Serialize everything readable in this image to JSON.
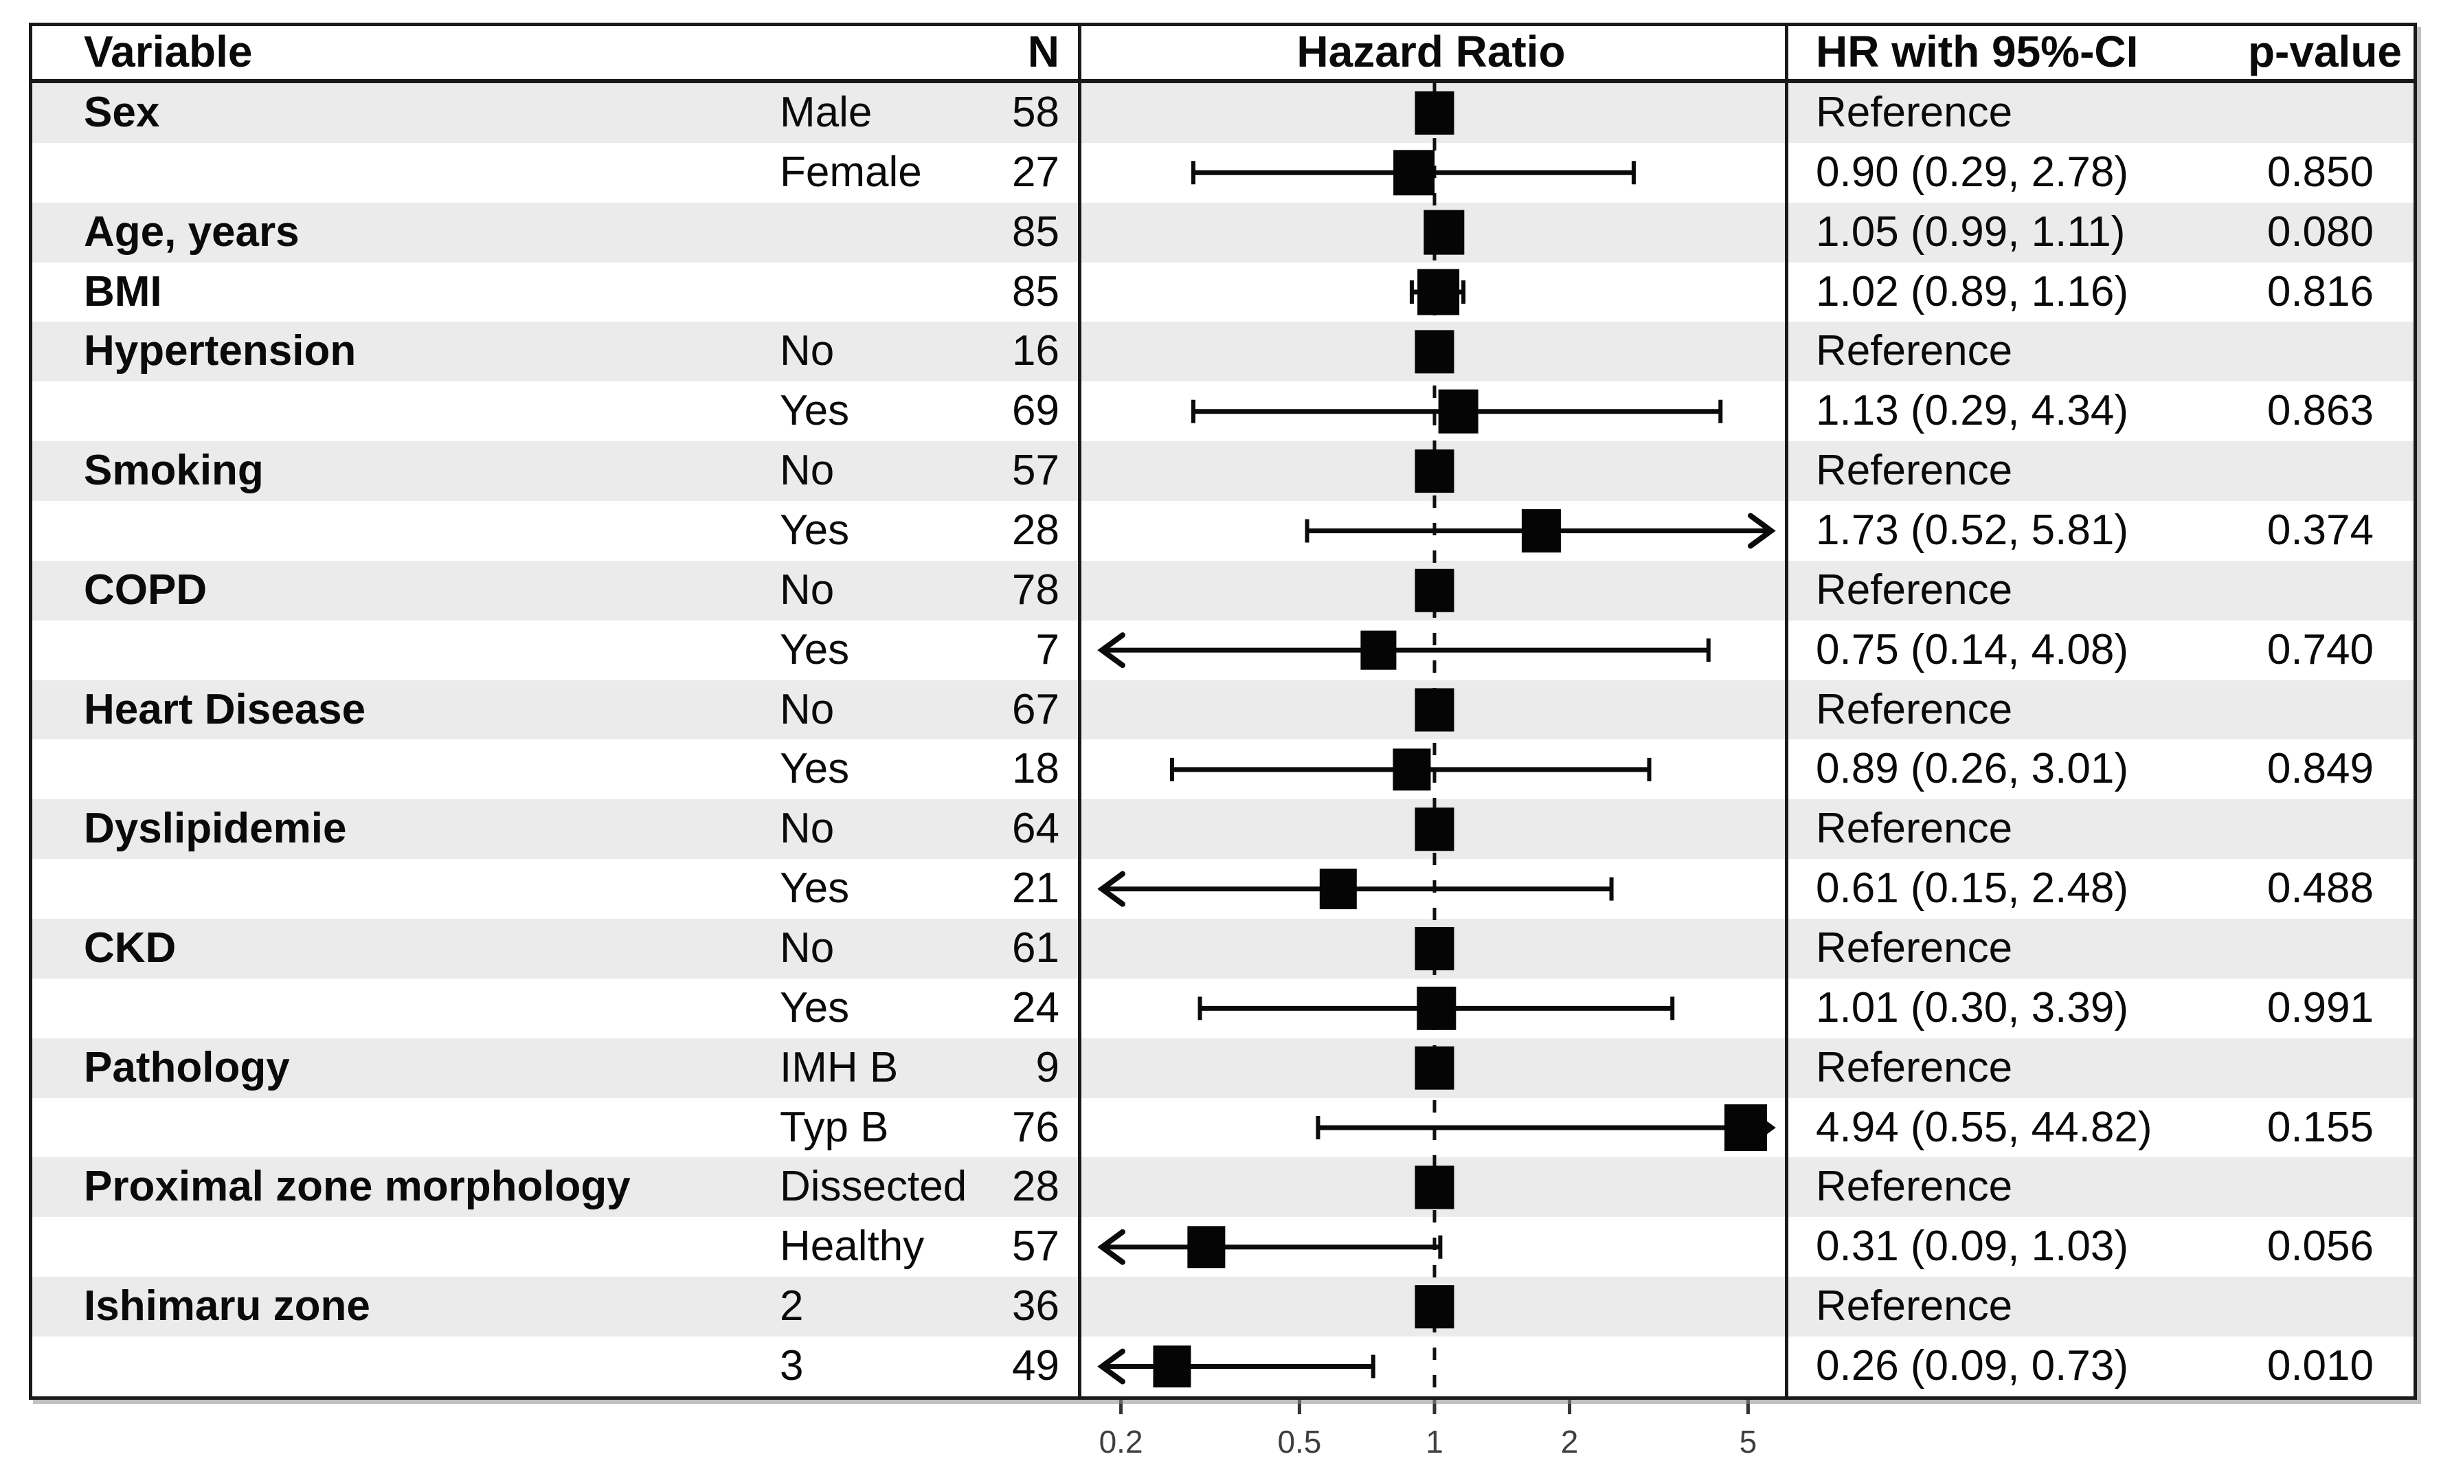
{
  "header": {
    "variable": "Variable",
    "n": "N",
    "hazard_ratio": "Hazard Ratio",
    "hr_ci": "HR with 95%-CI",
    "p_value": "p-value"
  },
  "reference_label": "Reference",
  "colors": {
    "stripe": "#ebebeb",
    "border": "#1a1a1a",
    "marker": "#050505",
    "text": "#0a0a0a",
    "axis_text": "#3f3f3f"
  },
  "chart_data": {
    "type": "scatter",
    "subtype": "forest-plot",
    "title": "Hazard Ratio",
    "x_scale": "log",
    "x_ticks": [
      "0.2",
      "0.5",
      "1",
      "2",
      "5"
    ],
    "x_tick_values": [
      0.2,
      0.5,
      1,
      2,
      5
    ],
    "reference_line": 1,
    "xlim_visible": [
      0.18,
      5.6
    ],
    "grid": false,
    "legend": "none",
    "rows": [
      {
        "variable": "Sex",
        "level": "Male",
        "n": "58",
        "reference": true,
        "est": 1.0,
        "lo": null,
        "hi": null,
        "hr_ci": "Reference",
        "p": "",
        "size": 57
      },
      {
        "variable": "",
        "level": "Female",
        "n": "27",
        "reference": false,
        "est": 0.9,
        "lo": 0.29,
        "hi": 2.78,
        "hr_ci": "0.90 (0.29, 2.78)",
        "p": "0.850",
        "size": 60
      },
      {
        "variable": "Age, years",
        "level": "",
        "n": "85",
        "reference": false,
        "est": 1.05,
        "lo": 0.99,
        "hi": 1.11,
        "hr_ci": "1.05 (0.99, 1.11)",
        "p": "0.080",
        "size": 59
      },
      {
        "variable": "BMI",
        "level": "",
        "n": "85",
        "reference": false,
        "est": 1.02,
        "lo": 0.89,
        "hi": 1.16,
        "hr_ci": "1.02 (0.89, 1.16)",
        "p": "0.816",
        "size": 61
      },
      {
        "variable": "Hypertension",
        "level": "No",
        "n": "16",
        "reference": true,
        "est": 1.0,
        "lo": null,
        "hi": null,
        "hr_ci": "Reference",
        "p": "",
        "size": 57
      },
      {
        "variable": "",
        "level": "Yes",
        "n": "69",
        "reference": false,
        "est": 1.13,
        "lo": 0.29,
        "hi": 4.34,
        "hr_ci": "1.13 (0.29, 4.34)",
        "p": "0.863",
        "size": 58
      },
      {
        "variable": "Smoking",
        "level": "No",
        "n": "57",
        "reference": true,
        "est": 1.0,
        "lo": null,
        "hi": null,
        "hr_ci": "Reference",
        "p": "",
        "size": 57
      },
      {
        "variable": "",
        "level": "Yes",
        "n": "28",
        "reference": false,
        "est": 1.73,
        "lo": 0.52,
        "hi": 5.81,
        "hr_ci": "1.73 (0.52, 5.81)",
        "p": "0.374",
        "size": 57
      },
      {
        "variable": "COPD",
        "level": "No",
        "n": "78",
        "reference": true,
        "est": 1.0,
        "lo": null,
        "hi": null,
        "hr_ci": "Reference",
        "p": "",
        "size": 57
      },
      {
        "variable": "",
        "level": "Yes",
        "n": "7",
        "reference": false,
        "est": 0.75,
        "lo": 0.14,
        "hi": 4.08,
        "hr_ci": "0.75 (0.14, 4.08)",
        "p": "0.740",
        "size": 52
      },
      {
        "variable": "Heart Disease",
        "level": "No",
        "n": "67",
        "reference": true,
        "est": 1.0,
        "lo": null,
        "hi": null,
        "hr_ci": "Reference",
        "p": "",
        "size": 57
      },
      {
        "variable": "",
        "level": "Yes",
        "n": "18",
        "reference": false,
        "est": 0.89,
        "lo": 0.26,
        "hi": 3.01,
        "hr_ci": "0.89 (0.26, 3.01)",
        "p": "0.849",
        "size": 55
      },
      {
        "variable": "Dyslipidemie",
        "level": "No",
        "n": "64",
        "reference": true,
        "est": 1.0,
        "lo": null,
        "hi": null,
        "hr_ci": "Reference",
        "p": "",
        "size": 57
      },
      {
        "variable": "",
        "level": "Yes",
        "n": "21",
        "reference": false,
        "est": 0.61,
        "lo": 0.15,
        "hi": 2.48,
        "hr_ci": "0.61 (0.15, 2.48)",
        "p": "0.488",
        "size": 54
      },
      {
        "variable": "CKD",
        "level": "No",
        "n": "61",
        "reference": true,
        "est": 1.0,
        "lo": null,
        "hi": null,
        "hr_ci": "Reference",
        "p": "",
        "size": 57
      },
      {
        "variable": "",
        "level": "Yes",
        "n": "24",
        "reference": false,
        "est": 1.01,
        "lo": 0.3,
        "hi": 3.39,
        "hr_ci": "1.01 (0.30, 3.39)",
        "p": "0.991",
        "size": 57
      },
      {
        "variable": "Pathology",
        "level": "IMH B",
        "n": "9",
        "reference": true,
        "est": 1.0,
        "lo": null,
        "hi": null,
        "hr_ci": "Reference",
        "p": "",
        "size": 57
      },
      {
        "variable": "",
        "level": "Typ B",
        "n": "76",
        "reference": false,
        "est": 4.94,
        "lo": 0.55,
        "hi": 44.82,
        "hr_ci": "4.94 (0.55, 44.82)",
        "p": "0.155",
        "size": 62
      },
      {
        "variable": "Proximal zone morphology",
        "level": "Dissected",
        "n": "28",
        "reference": true,
        "est": 1.0,
        "lo": null,
        "hi": null,
        "hr_ci": "Reference",
        "p": "",
        "size": 57
      },
      {
        "variable": "",
        "level": "Healthy",
        "n": "57",
        "reference": false,
        "est": 0.31,
        "lo": 0.09,
        "hi": 1.03,
        "hr_ci": "0.31 (0.09, 1.03)",
        "p": "0.056",
        "size": 55
      },
      {
        "variable": "Ishimaru zone",
        "level": "2",
        "n": "36",
        "reference": true,
        "est": 1.0,
        "lo": null,
        "hi": null,
        "hr_ci": "Reference",
        "p": "",
        "size": 57
      },
      {
        "variable": "",
        "level": "3",
        "n": "49",
        "reference": false,
        "est": 0.26,
        "lo": 0.09,
        "hi": 0.73,
        "hr_ci": "0.26 (0.09, 0.73)",
        "p": "0.010",
        "size": 55
      }
    ]
  }
}
